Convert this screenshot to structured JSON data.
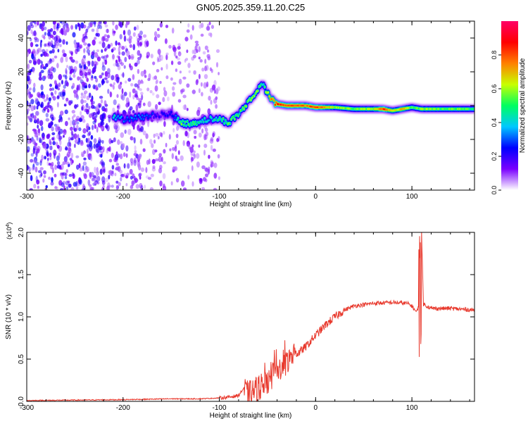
{
  "page": {
    "title": "GN05.2025.359.11.20.C25"
  },
  "chart_data": [
    {
      "type": "heatmap",
      "xlabel": "Height of straight line (km)",
      "ylabel": "Frequency (Hz)",
      "xlim": [
        -300,
        165
      ],
      "ylim": [
        -50,
        50
      ],
      "x_ticks": [
        -300,
        -200,
        -100,
        0,
        100
      ],
      "y_ticks": [
        -40,
        -20,
        0,
        20,
        40
      ],
      "colorbar": {
        "label": "Normalized spectral amplitude",
        "range": [
          0,
          1
        ],
        "ticks": [
          0.0,
          0.2,
          0.4,
          0.6,
          0.8
        ],
        "colors": [
          "#ffffff",
          "#7a00ff",
          "#0000ff",
          "#00c8ff",
          "#00ff60",
          "#c8ff00",
          "#ff8000",
          "#ff0000",
          "#ff0066"
        ]
      },
      "ridge": {
        "x": [
          -210,
          -200,
          -185,
          -170,
          -160,
          -150,
          -140,
          -130,
          -120,
          -110,
          -100,
          -90,
          -80,
          -70,
          -60,
          -55,
          -50,
          -45,
          -40,
          -30,
          -20,
          -10,
          0,
          20,
          40,
          60,
          70,
          80,
          90,
          100,
          110,
          130,
          150,
          165
        ],
        "frequency": [
          -7,
          -8,
          -7,
          -6,
          -5,
          -5,
          -10,
          -11,
          -9,
          -8,
          -8,
          -10,
          -5,
          2,
          9,
          14,
          7,
          3,
          1,
          0,
          0,
          0,
          -1,
          -1,
          -2,
          -2,
          -2,
          -3,
          -2,
          -1,
          -2,
          -2,
          -2,
          -2
        ],
        "amplitude": [
          0.4,
          0.3,
          0.3,
          0.25,
          0.2,
          0.2,
          0.55,
          0.5,
          0.45,
          0.4,
          0.45,
          0.55,
          0.5,
          0.55,
          0.6,
          0.45,
          0.6,
          0.75,
          0.85,
          0.8,
          0.8,
          0.75,
          0.85,
          0.6,
          0.55,
          0.6,
          0.85,
          0.6,
          0.7,
          0.5,
          0.6,
          0.55,
          0.55,
          0.5
        ]
      },
      "scatter_region": {
        "x_range": [
          -300,
          -100
        ],
        "frequency_range": [
          -50,
          50
        ],
        "amplitude_range": [
          0.05,
          0.25
        ]
      }
    },
    {
      "type": "line",
      "xlabel": "Height of straight line (km)",
      "ylabel": "SNR (10 * v/v)",
      "y_multiplier": "(x10",
      "y_multiplier_exponent": "4",
      "y_multiplier_close": ")",
      "xlim": [
        -300,
        165
      ],
      "ylim": [
        0,
        2.0
      ],
      "x_ticks": [
        -300,
        -200,
        -100,
        0,
        100
      ],
      "y_ticks": [
        0.0,
        0.5,
        1.0,
        1.5,
        2.0
      ],
      "series": [
        {
          "color": "#e83a2e",
          "x": [
            -300,
            -250,
            -200,
            -150,
            -120,
            -100,
            -90,
            -80,
            -75,
            -70,
            -60,
            -50,
            -40,
            -30,
            -20,
            -10,
            0,
            10,
            20,
            30,
            40,
            60,
            80,
            95,
            100,
            105,
            108,
            110,
            112,
            120,
            140,
            165
          ],
          "y": [
            0.01,
            0.015,
            0.02,
            0.03,
            0.03,
            0.04,
            0.05,
            0.07,
            0.15,
            0.08,
            0.15,
            0.2,
            0.35,
            0.45,
            0.55,
            0.65,
            0.78,
            0.9,
            1.0,
            1.08,
            1.13,
            1.16,
            1.17,
            1.16,
            1.13,
            1.05,
            1.2,
            2.0,
            1.15,
            1.1,
            1.1,
            1.08
          ]
        }
      ]
    }
  ]
}
